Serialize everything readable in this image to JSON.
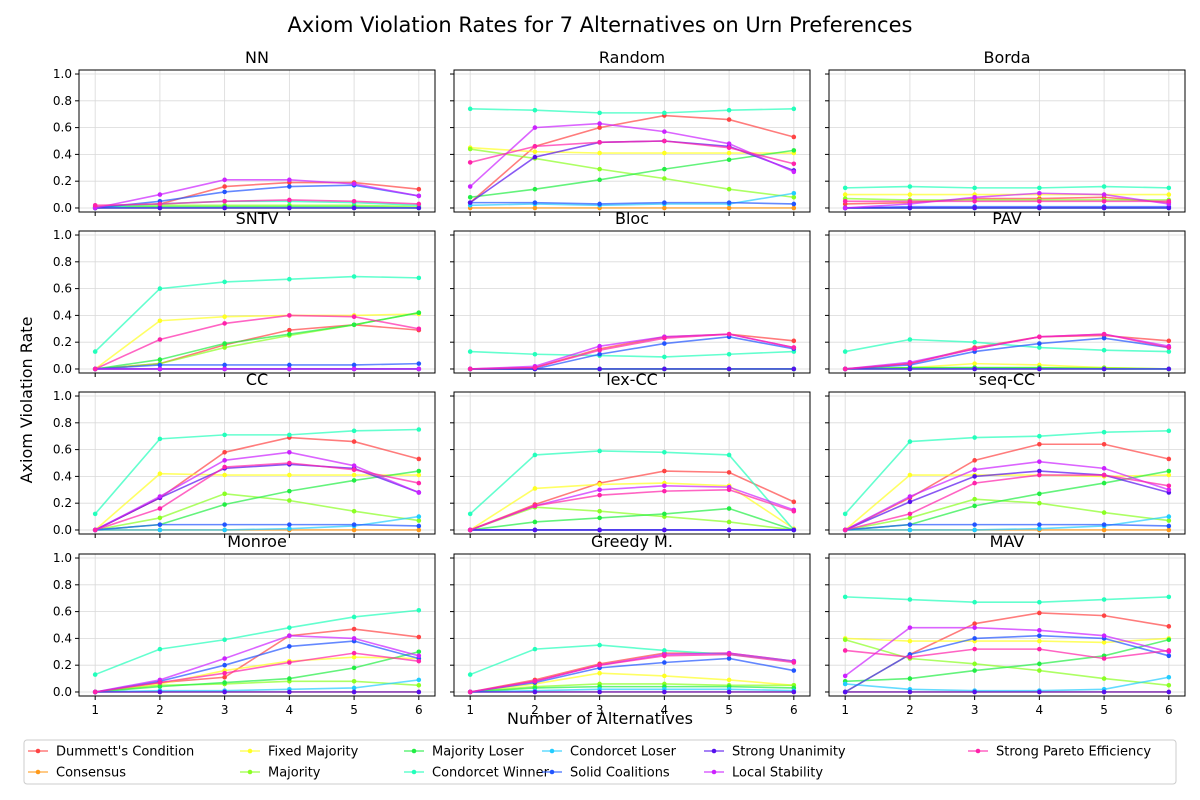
{
  "chart_data": {
    "type": "line",
    "title": "Axiom Violation Rates for 7 Alternatives on Urn Preferences",
    "xlabel": "Number of Alternatives",
    "ylabel": "Axiom Violation Rate",
    "x": [
      1,
      2,
      3,
      4,
      5,
      6
    ],
    "xlim": [
      0.75,
      6.25
    ],
    "ylim": [
      -0.03,
      1.03
    ],
    "xticks": [
      "1",
      "2",
      "3",
      "4",
      "5",
      "6"
    ],
    "yticks": [
      "0.0",
      "0.2",
      "0.4",
      "0.6",
      "0.8",
      "1.0"
    ],
    "grid": true,
    "legend_position": "bottom",
    "series_styles": [
      {
        "name": "Dummett's Condition",
        "color": "#ff4444"
      },
      {
        "name": "Consensus",
        "color": "#ff9a1a"
      },
      {
        "name": "Fixed Majority",
        "color": "#ffff22"
      },
      {
        "name": "Majority",
        "color": "#8aff22"
      },
      {
        "name": "Majority Loser",
        "color": "#22ee44"
      },
      {
        "name": "Condorcet Winner",
        "color": "#22ffbb"
      },
      {
        "name": "Condorcet Loser",
        "color": "#22ccff"
      },
      {
        "name": "Solid Coalitions",
        "color": "#2255ff"
      },
      {
        "name": "Strong Unanimity",
        "color": "#5511ee"
      },
      {
        "name": "Local Stability",
        "color": "#cc22ff"
      },
      {
        "name": "Strong Pareto Efficiency",
        "color": "#ff22aa"
      }
    ],
    "legend_entries": [
      "Dummett's Condition",
      "Consensus",
      "Fixed Majority",
      "Majority Loser",
      "Condorcet Loser",
      "Strong Unanimity",
      "Strong Pareto Efficiency",
      "Majority",
      "Condorcet Winner",
      "Solid Coalitions",
      "Local Stability"
    ],
    "panels": [
      {
        "title": "NN",
        "series": [
          [
            0.01,
            0.03,
            0.16,
            0.19,
            0.19,
            0.14
          ],
          [
            0.0,
            0.0,
            0.0,
            0.0,
            0.0,
            0.0
          ],
          [
            0.0,
            0.0,
            0.0,
            0.0,
            0.0,
            0.0
          ],
          [
            0.0,
            0.02,
            0.02,
            0.02,
            0.02,
            0.01
          ],
          [
            0.0,
            0.01,
            0.01,
            0.01,
            0.01,
            0.0
          ],
          [
            0.0,
            0.03,
            0.05,
            0.05,
            0.04,
            0.02
          ],
          [
            0.0,
            0.0,
            0.0,
            0.0,
            0.0,
            0.0
          ],
          [
            0.0,
            0.05,
            0.12,
            0.16,
            0.17,
            0.09
          ],
          [
            0.0,
            0.0,
            0.0,
            0.0,
            0.0,
            0.0
          ],
          [
            0.0,
            0.1,
            0.21,
            0.21,
            0.18,
            0.09
          ],
          [
            0.02,
            0.03,
            0.05,
            0.06,
            0.05,
            0.03
          ]
        ]
      },
      {
        "title": "Random",
        "series": [
          [
            0.04,
            0.46,
            0.6,
            0.69,
            0.66,
            0.53
          ],
          [
            0.0,
            0.0,
            0.0,
            0.0,
            0.0,
            0.0
          ],
          [
            0.45,
            0.42,
            0.41,
            0.41,
            0.41,
            0.41
          ],
          [
            0.44,
            0.37,
            0.29,
            0.22,
            0.14,
            0.08
          ],
          [
            0.08,
            0.14,
            0.21,
            0.29,
            0.36,
            0.43
          ],
          [
            0.74,
            0.73,
            0.71,
            0.71,
            0.73,
            0.74
          ],
          [
            0.02,
            0.03,
            0.02,
            0.03,
            0.03,
            0.11
          ],
          [
            0.04,
            0.04,
            0.03,
            0.04,
            0.04,
            0.03
          ],
          [
            0.04,
            0.38,
            0.49,
            0.5,
            0.46,
            0.28
          ],
          [
            0.16,
            0.6,
            0.63,
            0.57,
            0.48,
            0.27
          ],
          [
            0.34,
            0.46,
            0.49,
            0.5,
            0.45,
            0.33
          ]
        ]
      },
      {
        "title": "Borda",
        "series": [
          [
            0.03,
            0.04,
            0.07,
            0.07,
            0.08,
            0.04
          ],
          [
            0.0,
            0.0,
            0.0,
            0.0,
            0.0,
            0.0
          ],
          [
            0.1,
            0.1,
            0.1,
            0.1,
            0.1,
            0.1
          ],
          [
            0.07,
            0.06,
            0.06,
            0.06,
            0.06,
            0.06
          ],
          [
            0.0,
            0.0,
            0.0,
            0.0,
            0.0,
            0.0
          ],
          [
            0.15,
            0.16,
            0.15,
            0.15,
            0.16,
            0.15
          ],
          [
            0.0,
            0.0,
            0.0,
            0.0,
            0.0,
            0.0
          ],
          [
            0.0,
            0.01,
            0.01,
            0.01,
            0.01,
            0.01
          ],
          [
            0.0,
            0.0,
            0.0,
            0.0,
            0.0,
            0.0
          ],
          [
            0.0,
            0.03,
            0.08,
            0.11,
            0.1,
            0.03
          ],
          [
            0.05,
            0.05,
            0.05,
            0.05,
            0.05,
            0.05
          ]
        ]
      },
      {
        "title": "SNTV",
        "series": [
          [
            0.0,
            0.04,
            0.18,
            0.29,
            0.33,
            0.29
          ],
          [
            0.0,
            0.0,
            0.0,
            0.0,
            0.0,
            0.0
          ],
          [
            0.0,
            0.36,
            0.39,
            0.4,
            0.4,
            0.41
          ],
          [
            0.0,
            0.04,
            0.16,
            0.25,
            0.33,
            0.42
          ],
          [
            0.0,
            0.07,
            0.19,
            0.26,
            0.33,
            0.42
          ],
          [
            0.13,
            0.6,
            0.65,
            0.67,
            0.69,
            0.68
          ],
          [
            0.0,
            0.0,
            0.0,
            0.0,
            0.0,
            0.0
          ],
          [
            0.0,
            0.03,
            0.03,
            0.03,
            0.03,
            0.04
          ],
          [
            0.0,
            0.0,
            0.0,
            0.0,
            0.0,
            0.0
          ],
          [
            0.0,
            0.0,
            0.0,
            0.0,
            0.0,
            0.0
          ],
          [
            0.0,
            0.22,
            0.34,
            0.4,
            0.39,
            0.3
          ]
        ]
      },
      {
        "title": "Bloc",
        "series": [
          [
            0.0,
            0.01,
            0.15,
            0.24,
            0.26,
            0.21
          ],
          [
            0.0,
            0.0,
            0.0,
            0.0,
            0.0,
            0.0
          ],
          [
            0.0,
            0.0,
            0.0,
            0.0,
            0.0,
            0.0
          ],
          [
            0.0,
            0.0,
            0.0,
            0.0,
            0.0,
            0.0
          ],
          [
            0.0,
            0.0,
            0.0,
            0.0,
            0.0,
            0.0
          ],
          [
            0.13,
            0.11,
            0.1,
            0.09,
            0.11,
            0.13
          ],
          [
            0.0,
            0.0,
            0.0,
            0.0,
            0.0,
            0.0
          ],
          [
            0.0,
            0.0,
            0.11,
            0.19,
            0.24,
            0.15
          ],
          [
            0.0,
            0.0,
            0.0,
            0.0,
            0.0,
            0.0
          ],
          [
            0.0,
            0.02,
            0.17,
            0.24,
            0.26,
            0.16
          ],
          [
            0.0,
            0.01,
            0.14,
            0.23,
            0.26,
            0.16
          ]
        ]
      },
      {
        "title": "PAV",
        "series": [
          [
            0.0,
            0.04,
            0.16,
            0.24,
            0.25,
            0.21
          ],
          [
            0.0,
            0.0,
            0.0,
            0.0,
            0.0,
            0.0
          ],
          [
            0.0,
            0.01,
            0.04,
            0.03,
            0.01,
            0.0
          ],
          [
            0.0,
            0.01,
            0.01,
            0.01,
            0.01,
            0.0
          ],
          [
            0.0,
            0.01,
            0.01,
            0.01,
            0.0,
            0.0
          ],
          [
            0.13,
            0.22,
            0.2,
            0.16,
            0.14,
            0.13
          ],
          [
            0.0,
            0.0,
            0.0,
            0.0,
            0.0,
            0.0
          ],
          [
            0.0,
            0.03,
            0.13,
            0.19,
            0.23,
            0.16
          ],
          [
            0.0,
            0.0,
            0.0,
            0.0,
            0.0,
            0.0
          ],
          [
            0.0,
            0.05,
            0.15,
            0.24,
            0.26,
            0.17
          ],
          [
            0.0,
            0.04,
            0.15,
            0.24,
            0.26,
            0.16
          ]
        ]
      },
      {
        "title": "CC",
        "series": [
          [
            0.0,
            0.24,
            0.58,
            0.69,
            0.66,
            0.53
          ],
          [
            0.0,
            0.0,
            0.0,
            0.0,
            0.0,
            0.0
          ],
          [
            0.0,
            0.42,
            0.41,
            0.41,
            0.41,
            0.41
          ],
          [
            0.0,
            0.09,
            0.27,
            0.22,
            0.14,
            0.07
          ],
          [
            0.0,
            0.04,
            0.19,
            0.29,
            0.37,
            0.44
          ],
          [
            0.12,
            0.68,
            0.71,
            0.71,
            0.74,
            0.75
          ],
          [
            0.0,
            0.0,
            0.0,
            0.01,
            0.03,
            0.1
          ],
          [
            0.0,
            0.04,
            0.04,
            0.04,
            0.04,
            0.03
          ],
          [
            0.0,
            0.24,
            0.46,
            0.49,
            0.46,
            0.28
          ],
          [
            0.0,
            0.25,
            0.52,
            0.58,
            0.48,
            0.28
          ],
          [
            0.0,
            0.16,
            0.47,
            0.5,
            0.45,
            0.35
          ]
        ]
      },
      {
        "title": "lex-CC",
        "series": [
          [
            0.0,
            0.19,
            0.35,
            0.44,
            0.43,
            0.21
          ],
          [
            0.0,
            0.0,
            0.0,
            0.0,
            0.0,
            0.0
          ],
          [
            0.0,
            0.31,
            0.34,
            0.35,
            0.33,
            0.01
          ],
          [
            0.0,
            0.17,
            0.14,
            0.1,
            0.06,
            0.0
          ],
          [
            0.0,
            0.06,
            0.09,
            0.12,
            0.16,
            0.0
          ],
          [
            0.12,
            0.56,
            0.59,
            0.58,
            0.56,
            0.0
          ],
          [
            0.0,
            0.0,
            0.0,
            0.0,
            0.0,
            0.0
          ],
          [
            0.0,
            0.0,
            0.0,
            0.0,
            0.0,
            0.0
          ],
          [
            0.0,
            0.0,
            0.0,
            0.0,
            0.0,
            0.0
          ],
          [
            0.0,
            0.18,
            0.3,
            0.33,
            0.32,
            0.15
          ],
          [
            0.0,
            0.18,
            0.26,
            0.29,
            0.3,
            0.14
          ]
        ]
      },
      {
        "title": "seq-CC",
        "series": [
          [
            0.0,
            0.24,
            0.52,
            0.64,
            0.64,
            0.53
          ],
          [
            0.0,
            0.0,
            0.0,
            0.0,
            0.0,
            0.0
          ],
          [
            0.0,
            0.41,
            0.41,
            0.41,
            0.4,
            0.41
          ],
          [
            0.0,
            0.09,
            0.23,
            0.2,
            0.13,
            0.07
          ],
          [
            0.0,
            0.04,
            0.18,
            0.27,
            0.35,
            0.44
          ],
          [
            0.12,
            0.66,
            0.69,
            0.7,
            0.73,
            0.74
          ],
          [
            0.0,
            0.0,
            0.0,
            0.01,
            0.03,
            0.1
          ],
          [
            0.0,
            0.04,
            0.04,
            0.04,
            0.04,
            0.03
          ],
          [
            0.0,
            0.21,
            0.4,
            0.44,
            0.41,
            0.28
          ],
          [
            0.0,
            0.25,
            0.45,
            0.51,
            0.46,
            0.3
          ],
          [
            0.0,
            0.12,
            0.35,
            0.41,
            0.41,
            0.33
          ]
        ]
      },
      {
        "title": "Monroe",
        "series": [
          [
            0.0,
            0.07,
            0.11,
            0.42,
            0.47,
            0.41
          ],
          [
            0.0,
            0.0,
            0.0,
            0.0,
            0.0,
            0.0
          ],
          [
            0.0,
            0.06,
            0.16,
            0.23,
            0.26,
            0.25
          ],
          [
            0.0,
            0.05,
            0.06,
            0.08,
            0.08,
            0.05
          ],
          [
            0.0,
            0.04,
            0.07,
            0.1,
            0.18,
            0.3
          ],
          [
            0.13,
            0.32,
            0.39,
            0.48,
            0.56,
            0.61
          ],
          [
            0.0,
            0.01,
            0.01,
            0.02,
            0.03,
            0.09
          ],
          [
            0.0,
            0.08,
            0.2,
            0.34,
            0.38,
            0.25
          ],
          [
            0.0,
            0.0,
            0.0,
            0.0,
            0.0,
            0.0
          ],
          [
            0.0,
            0.09,
            0.25,
            0.42,
            0.4,
            0.27
          ],
          [
            0.0,
            0.07,
            0.14,
            0.22,
            0.29,
            0.23
          ]
        ]
      },
      {
        "title": "Greedy M.",
        "series": [
          [
            0.0,
            0.09,
            0.21,
            0.29,
            0.29,
            0.23
          ],
          [
            0.0,
            0.0,
            0.0,
            0.0,
            0.0,
            0.0
          ],
          [
            0.0,
            0.06,
            0.14,
            0.12,
            0.09,
            0.05
          ],
          [
            0.0,
            0.04,
            0.06,
            0.06,
            0.05,
            0.05
          ],
          [
            0.0,
            0.03,
            0.04,
            0.04,
            0.04,
            0.03
          ],
          [
            0.13,
            0.32,
            0.35,
            0.31,
            0.28,
            0.23
          ],
          [
            0.0,
            0.01,
            0.02,
            0.02,
            0.02,
            0.01
          ],
          [
            0.0,
            0.07,
            0.18,
            0.22,
            0.25,
            0.16
          ],
          [
            0.0,
            0.0,
            0.0,
            0.0,
            0.0,
            0.0
          ],
          [
            0.0,
            0.08,
            0.2,
            0.28,
            0.29,
            0.23
          ],
          [
            0.0,
            0.08,
            0.2,
            0.27,
            0.28,
            0.22
          ]
        ]
      },
      {
        "title": "MAV",
        "series": [
          [
            0.0,
            0.28,
            0.51,
            0.59,
            0.57,
            0.49
          ],
          [
            0.0,
            0.0,
            0.0,
            0.0,
            0.0,
            0.0
          ],
          [
            0.4,
            0.38,
            0.38,
            0.38,
            0.37,
            0.4
          ],
          [
            0.39,
            0.25,
            0.21,
            0.16,
            0.1,
            0.05
          ],
          [
            0.08,
            0.1,
            0.16,
            0.21,
            0.27,
            0.39
          ],
          [
            0.71,
            0.69,
            0.67,
            0.67,
            0.69,
            0.71
          ],
          [
            0.06,
            0.02,
            0.01,
            0.01,
            0.02,
            0.11
          ],
          [
            0.0,
            0.28,
            0.4,
            0.42,
            0.4,
            0.27
          ],
          [
            0.0,
            0.0,
            0.0,
            0.0,
            0.0,
            0.0
          ],
          [
            0.12,
            0.48,
            0.48,
            0.46,
            0.42,
            0.3
          ],
          [
            0.31,
            0.26,
            0.32,
            0.32,
            0.25,
            0.31
          ]
        ]
      }
    ]
  }
}
